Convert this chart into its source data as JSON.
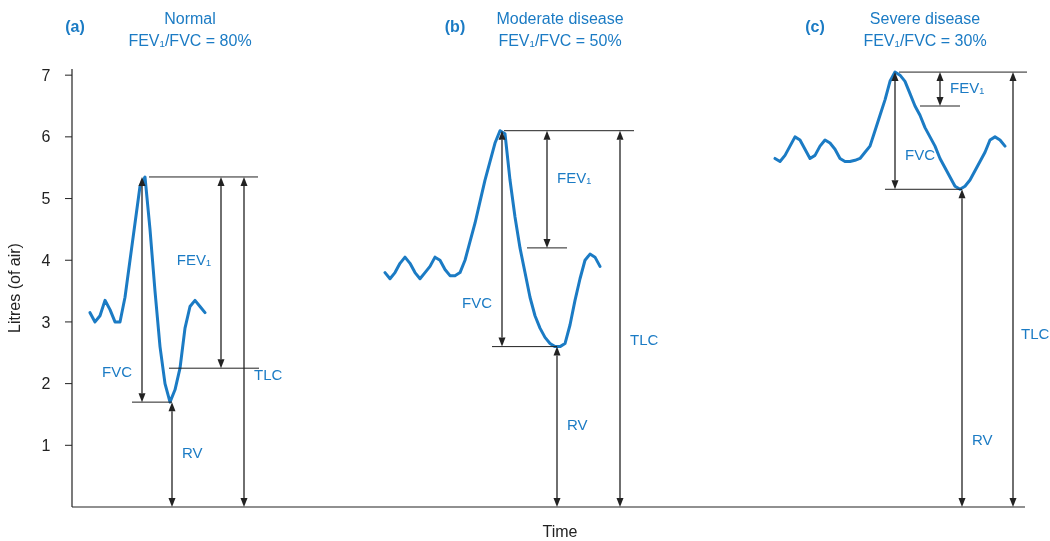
{
  "chart_data": {
    "type": "line",
    "xlabel": "Time",
    "ylabel": "Litres (of air)",
    "ylim": [
      0,
      7.1
    ],
    "yticks": [
      1,
      2,
      3,
      4,
      5,
      6,
      7
    ],
    "tick_labels": "y",
    "categories": [
      null,
      null,
      null,
      null,
      null,
      null,
      null,
      null,
      null,
      null,
      null,
      null,
      null,
      null,
      null,
      null,
      null,
      null,
      null,
      null,
      null,
      null,
      null,
      null,
      null,
      null,
      null,
      null,
      null,
      null,
      null,
      null,
      null,
      null,
      null,
      null,
      null,
      null,
      null,
      null,
      null,
      null,
      null,
      null,
      null,
      null,
      null,
      null,
      null,
      null,
      null,
      null,
      null,
      null,
      null,
      null,
      null,
      null,
      null,
      null,
      null,
      null,
      null,
      null,
      null,
      null,
      null,
      null,
      null,
      null,
      null,
      null,
      null,
      null,
      null,
      null,
      null,
      null,
      null,
      null,
      null,
      null,
      null,
      null,
      null,
      null,
      null,
      null,
      null,
      null,
      null,
      null,
      null,
      null,
      null,
      null,
      null,
      null,
      null,
      null,
      null,
      null,
      null,
      null,
      null,
      null,
      null,
      null,
      null,
      null,
      null,
      null,
      null,
      null,
      null,
      null,
      null,
      null,
      null,
      null,
      null,
      null,
      null,
      null,
      null,
      null,
      null,
      null,
      null,
      null,
      null,
      null,
      null,
      null,
      null,
      null,
      null,
      null,
      null,
      null,
      null,
      null,
      null,
      null,
      null,
      null,
      null,
      null,
      null,
      null,
      null,
      null,
      null,
      null,
      null,
      null,
      null,
      null,
      null,
      null,
      null,
      null,
      null,
      null,
      null,
      null,
      null,
      null,
      null,
      null,
      null,
      null,
      null,
      null,
      null,
      null,
      null,
      null,
      null,
      null,
      null,
      null,
      null,
      null,
      null,
      null,
      null,
      null,
      null,
      null
    ],
    "series": [
      {
        "color": "#1b7bc4",
        "values": [
          null,
          null,
          null,
          3.15,
          3.0,
          3.1,
          3.35,
          3.2,
          3.0,
          3.0,
          3.4,
          4.0,
          4.6,
          5.2,
          5.35,
          4.5,
          3.5,
          2.6,
          2.0,
          1.7,
          1.9,
          2.25,
          2.9,
          3.25,
          3.35,
          3.25,
          3.15,
          null,
          null,
          null,
          null,
          null,
          null,
          null,
          null,
          null,
          null,
          null,
          null,
          null,
          null,
          null,
          null,
          null,
          null,
          null,
          null,
          null,
          null,
          null,
          null,
          null,
          null,
          null,
          null,
          null,
          null,
          null,
          null,
          null,
          null,
          null,
          3.8,
          3.7,
          3.8,
          3.95,
          4.05,
          3.95,
          3.8,
          3.7,
          3.8,
          3.9,
          4.05,
          4.0,
          3.85,
          3.75,
          3.75,
          3.8,
          4.0,
          4.3,
          4.6,
          4.95,
          5.3,
          5.6,
          5.9,
          6.1,
          6.05,
          5.3,
          4.7,
          4.2,
          3.8,
          3.4,
          3.1,
          2.9,
          2.75,
          2.65,
          2.6,
          2.6,
          2.65,
          2.95,
          3.35,
          3.7,
          4.0,
          4.1,
          4.05,
          3.9,
          null,
          null,
          null,
          null,
          null,
          null,
          null,
          null,
          null,
          null,
          null,
          null,
          null,
          null,
          null,
          null,
          null,
          null,
          null,
          null,
          null,
          null,
          null,
          null,
          null,
          null,
          null,
          null,
          null,
          null,
          null,
          null,
          null,
          null,
          5.65,
          5.6,
          5.7,
          5.85,
          6.0,
          5.95,
          5.8,
          5.65,
          5.7,
          5.85,
          5.95,
          5.9,
          5.8,
          5.65,
          5.6,
          5.6,
          5.62,
          5.65,
          5.75,
          5.85,
          6.1,
          6.35,
          6.6,
          6.9,
          7.05,
          7.0,
          6.9,
          6.7,
          6.5,
          6.35,
          6.15,
          6.0,
          5.85,
          5.65,
          5.5,
          5.35,
          5.2,
          5.15,
          5.2,
          5.3,
          5.45,
          5.6,
          5.75,
          5.95,
          6.0,
          5.95,
          5.85,
          null,
          null,
          null
        ]
      }
    ],
    "annotations": [
      "FEV₁",
      "FVC",
      "RV",
      "TLC",
      "FEV₁",
      "FVC",
      "RV",
      "TLC",
      "FEV₁",
      "FVC",
      "RV",
      "TLC",
      "(a)",
      "Normal",
      "FEV₁/FVC = 80%",
      "(b)",
      "Moderate disease",
      "FEV₁/FVC = 50%",
      "(c)",
      "Severe disease",
      "FEV₁/FVC = 30%"
    ]
  }
}
